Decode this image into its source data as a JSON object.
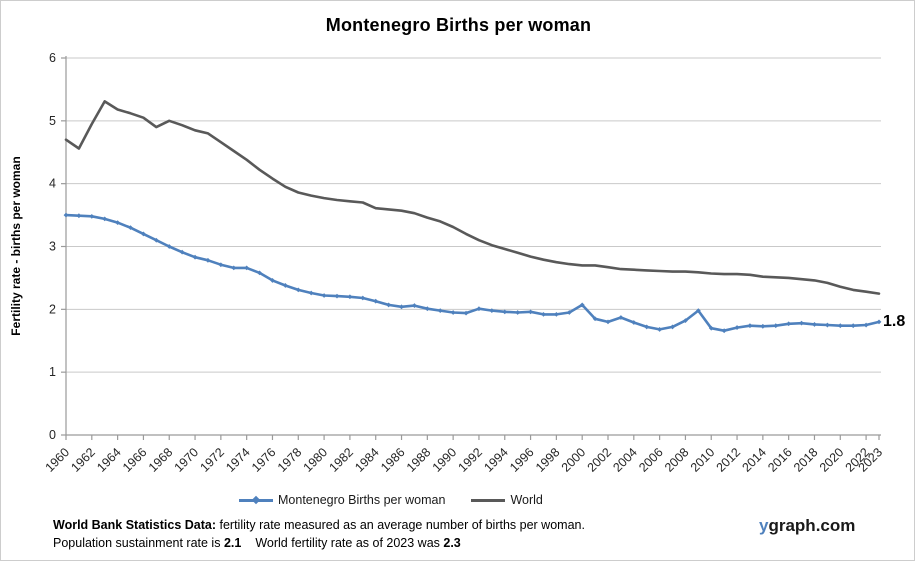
{
  "title": "Montenegro Births per woman",
  "end_label": "1.8",
  "legend": {
    "montenegro_label": "Montenegro Births per woman",
    "world_label": "World"
  },
  "footer": {
    "line1_bold": "World Bank Statistics Data:",
    "line1_rest": " fertility rate measured as an average number of births per woman.",
    "line2_part1": "Population sustainment rate is ",
    "line2_bold1": "2.1",
    "line2_part2": "World fertility rate as of 2023 was ",
    "line2_bold2": "2.3"
  },
  "brand": {
    "prefix": "y",
    "rest": "graph.com"
  },
  "colors": {
    "montenegro": "#4f81bd",
    "world": "#595959",
    "gridline": "#c9c9c9",
    "axis": "#9a9a9a",
    "tick_text": "#262626"
  },
  "chart_data": {
    "type": "line",
    "title": "Montenegro Births per woman",
    "xlabel": "",
    "ylabel": "Fertility rate - births per woman",
    "ylim": [
      0,
      6
    ],
    "y_ticks": [
      0,
      1,
      2,
      3,
      4,
      5,
      6
    ],
    "grid": true,
    "legend_position": "bottom",
    "x_tick_labels": [
      1960,
      1962,
      1964,
      1966,
      1968,
      1970,
      1972,
      1974,
      1976,
      1978,
      1980,
      1982,
      1984,
      1986,
      1988,
      1990,
      1992,
      1994,
      1996,
      1998,
      2000,
      2002,
      2004,
      2006,
      2008,
      2010,
      2012,
      2014,
      2016,
      2018,
      2020,
      2022,
      2023
    ],
    "x": [
      1960,
      1961,
      1962,
      1963,
      1964,
      1965,
      1966,
      1967,
      1968,
      1969,
      1970,
      1971,
      1972,
      1973,
      1974,
      1975,
      1976,
      1977,
      1978,
      1979,
      1980,
      1981,
      1982,
      1983,
      1984,
      1985,
      1986,
      1987,
      1988,
      1989,
      1990,
      1991,
      1992,
      1993,
      1994,
      1995,
      1996,
      1997,
      1998,
      1999,
      2000,
      2001,
      2002,
      2003,
      2004,
      2005,
      2006,
      2007,
      2008,
      2009,
      2010,
      2011,
      2012,
      2013,
      2014,
      2015,
      2016,
      2017,
      2018,
      2019,
      2020,
      2021,
      2022,
      2023
    ],
    "series": [
      {
        "name": "Montenegro Births per woman",
        "color": "#4f81bd",
        "marker": "diamond",
        "end_label": "1.8",
        "values": [
          3.5,
          3.49,
          3.48,
          3.44,
          3.38,
          3.3,
          3.2,
          3.1,
          3.0,
          2.91,
          2.83,
          2.78,
          2.71,
          2.66,
          2.66,
          2.58,
          2.46,
          2.38,
          2.31,
          2.26,
          2.22,
          2.21,
          2.2,
          2.18,
          2.13,
          2.07,
          2.04,
          2.06,
          2.01,
          1.98,
          1.95,
          1.94,
          2.01,
          1.98,
          1.96,
          1.95,
          1.96,
          1.92,
          1.92,
          1.95,
          2.07,
          1.85,
          1.8,
          1.87,
          1.79,
          1.72,
          1.68,
          1.72,
          1.82,
          1.98,
          1.7,
          1.66,
          1.71,
          1.74,
          1.73,
          1.74,
          1.77,
          1.78,
          1.76,
          1.75,
          1.74,
          1.74,
          1.75,
          1.8
        ]
      },
      {
        "name": "World",
        "color": "#595959",
        "marker": null,
        "values": [
          4.7,
          4.56,
          4.95,
          5.31,
          5.18,
          5.12,
          5.05,
          4.9,
          5.0,
          4.93,
          4.85,
          4.8,
          4.66,
          4.52,
          4.38,
          4.22,
          4.08,
          3.95,
          3.86,
          3.81,
          3.77,
          3.74,
          3.72,
          3.7,
          3.61,
          3.59,
          3.57,
          3.53,
          3.46,
          3.4,
          3.31,
          3.2,
          3.1,
          3.02,
          2.96,
          2.9,
          2.84,
          2.79,
          2.75,
          2.72,
          2.7,
          2.7,
          2.67,
          2.64,
          2.63,
          2.62,
          2.61,
          2.6,
          2.6,
          2.59,
          2.57,
          2.56,
          2.56,
          2.55,
          2.52,
          2.51,
          2.5,
          2.48,
          2.46,
          2.42,
          2.36,
          2.31,
          2.28,
          2.25
        ]
      }
    ]
  }
}
